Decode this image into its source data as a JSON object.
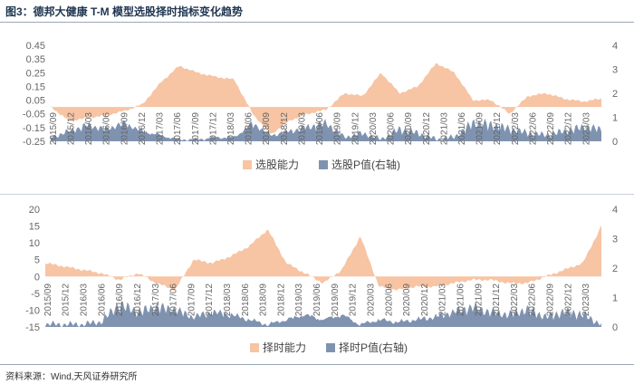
{
  "title": "图3：德邦大健康 T-M 模型选股择时指标变化趋势",
  "source": "资料来源：Wind,天风证券研究所",
  "colors": {
    "ability": "#f7c4a4",
    "pvalue": "#7f93b0",
    "axis": "#666666",
    "title": "#1f3550"
  },
  "chart_data": [
    {
      "type": "area",
      "legend": "bottom-center",
      "grid": false,
      "x": [
        "2015/09",
        "2015/12",
        "2016/03",
        "2016/06",
        "2016/09",
        "2016/12",
        "2017/03",
        "2017/06",
        "2017/09",
        "2017/12",
        "2018/03",
        "2018/06",
        "2018/09",
        "2018/12",
        "2019/03",
        "2019/06",
        "2019/09",
        "2019/12",
        "2020/03",
        "2020/06",
        "2020/09",
        "2020/12",
        "2021/03",
        "2021/06",
        "2021/09",
        "2021/12",
        "2022/03",
        "2022/06",
        "2022/09",
        "2022/12",
        "2023/03"
      ],
      "x_ticks": [
        "2015/09",
        "2015/12",
        "2016/03",
        "2016/06",
        "2016/09",
        "2016/12",
        "2017/03",
        "2017/06",
        "2017/09",
        "2017/12",
        "2018/03",
        "2018/06",
        "2018/09",
        "2018/12",
        "2019/03",
        "2019/06",
        "2019/09",
        "2019/12",
        "2020/03",
        "2020/06",
        "2020/09",
        "2020/12",
        "2021/03",
        "2021/06",
        "2021/09",
        "2021/12",
        "2022/03",
        "2022/06",
        "2022/09",
        "2022/12",
        "2023/03"
      ],
      "ylim": [
        -0.25,
        0.45
      ],
      "yticks": [
        "0.45",
        "0.35",
        "0.25",
        "0.15",
        "0.05",
        "-0.05",
        "-0.15",
        "-0.25"
      ],
      "y2lim": [
        0,
        4
      ],
      "y2ticks": [
        "4",
        "3",
        "2",
        "1",
        "0"
      ],
      "series": [
        {
          "name": "选股能力",
          "axis": "left",
          "values": [
            0.0,
            -0.1,
            -0.08,
            -0.06,
            -0.03,
            0.02,
            0.18,
            0.3,
            0.25,
            0.22,
            0.2,
            -0.05,
            -0.2,
            -0.1,
            -0.05,
            -0.02,
            0.1,
            0.08,
            0.25,
            0.1,
            0.15,
            0.32,
            0.25,
            0.05,
            0.05,
            -0.05,
            0.08,
            0.1,
            0.06,
            0.04,
            0.06
          ]
        },
        {
          "name": "选股P值(右轴)",
          "axis": "right",
          "values": [
            0.2,
            0.5,
            0.8,
            0.6,
            0.9,
            0.5,
            0.3,
            0.1,
            0.1,
            0.2,
            0.2,
            0.9,
            0.3,
            0.5,
            0.7,
            0.9,
            0.2,
            0.4,
            0.1,
            0.6,
            0.4,
            0.1,
            0.2,
            0.9,
            0.8,
            0.6,
            0.4,
            0.3,
            0.5,
            0.7,
            0.6
          ]
        }
      ]
    },
    {
      "type": "area",
      "legend": "bottom-center",
      "grid": false,
      "x": [
        "2015/09",
        "2015/12",
        "2016/03",
        "2016/06",
        "2016/09",
        "2016/12",
        "2017/03",
        "2017/06",
        "2017/09",
        "2017/12",
        "2018/03",
        "2018/06",
        "2018/09",
        "2018/12",
        "2019/03",
        "2019/06",
        "2019/09",
        "2019/12",
        "2020/03",
        "2020/06",
        "2020/09",
        "2020/12",
        "2021/03",
        "2021/06",
        "2021/09",
        "2021/12",
        "2022/03",
        "2022/06",
        "2022/09",
        "2022/12",
        "2023/03"
      ],
      "x_ticks": [
        "2015/09",
        "2015/12",
        "2016/03",
        "2016/06",
        "2016/09",
        "2016/12",
        "2017/03",
        "2017/06",
        "2017/09",
        "2017/12",
        "2018/03",
        "2018/06",
        "2018/09",
        "2018/12",
        "2019/03",
        "2019/06",
        "2019/09",
        "2019/12",
        "2020/03",
        "2020/06",
        "2020/09",
        "2020/12",
        "2021/03",
        "2021/06",
        "2021/09",
        "2021/12",
        "2022/03",
        "2022/06",
        "2022/09",
        "2022/12",
        "2023/03"
      ],
      "ylim": [
        -15,
        20
      ],
      "yticks": [
        "20",
        "15",
        "10",
        "5",
        "0",
        "-5",
        "-10",
        "-15"
      ],
      "y2lim": [
        0,
        4
      ],
      "y2ticks": [
        "4",
        "3",
        "2",
        "1",
        "0"
      ],
      "series": [
        {
          "name": "择时能力",
          "axis": "left",
          "values": [
            4,
            3,
            2,
            1,
            -1,
            1,
            -2,
            -4,
            5,
            4,
            6,
            9,
            14,
            4,
            1,
            -2,
            2,
            12,
            -3,
            -4,
            -3,
            -3,
            -2,
            -1,
            -1,
            -2,
            -2,
            0,
            2,
            4,
            15
          ]
        },
        {
          "name": "择时P值(右轴)",
          "axis": "right",
          "values": [
            0.1,
            0.1,
            0.1,
            0.2,
            0.9,
            0.6,
            0.8,
            0.7,
            0.4,
            0.6,
            0.5,
            0.3,
            0.1,
            0.3,
            0.5,
            0.3,
            0.5,
            0.1,
            0.3,
            0.2,
            0.3,
            0.4,
            0.6,
            0.8,
            0.6,
            0.5,
            0.7,
            0.4,
            0.6,
            0.5,
            0.1
          ]
        }
      ]
    }
  ]
}
